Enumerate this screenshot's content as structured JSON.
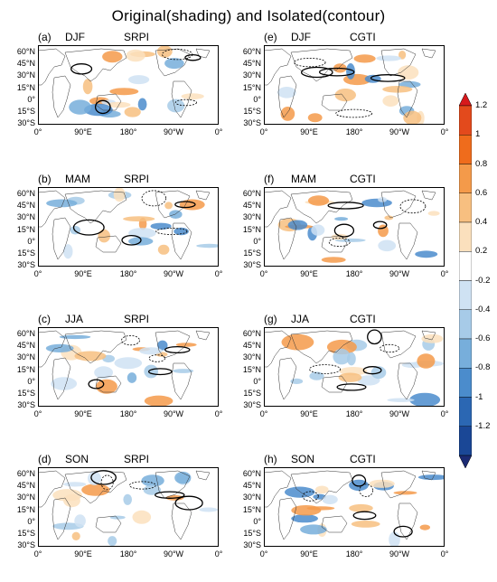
{
  "title": "Original(shading) and Isolated(contour)",
  "panels": [
    {
      "label": "(a)",
      "season": "DJF",
      "index": "SRPI"
    },
    {
      "label": "(b)",
      "season": "MAM",
      "index": "SRPI"
    },
    {
      "label": "(c)",
      "season": "JJA",
      "index": "SRPI"
    },
    {
      "label": "(d)",
      "season": "SON",
      "index": "SRPI"
    },
    {
      "label": "(e)",
      "season": "DJF",
      "index": "CGTI"
    },
    {
      "label": "(f)",
      "season": "MAM",
      "index": "CGTI"
    },
    {
      "label": "(g)",
      "season": "JJA",
      "index": "CGTI"
    },
    {
      "label": "(h)",
      "season": "SON",
      "index": "CGTI"
    }
  ],
  "lat_labels": [
    "60°N",
    "45°N",
    "30°N",
    "15°N",
    "0°",
    "15°S",
    "30°S"
  ],
  "lon_labels": [
    "0°",
    "90°E",
    "180°",
    "90°W",
    "0°"
  ],
  "colorbar": {
    "labels": [
      "1.2",
      "1",
      "0.8",
      "0.6",
      "0.4",
      "0.2",
      "-0.2",
      "-0.4",
      "-0.6",
      "-0.8",
      "-1",
      "-1.2"
    ],
    "colors": [
      "#d7191c",
      "#e34a1c",
      "#ef6c1c",
      "#f49a4a",
      "#f7bf80",
      "#fbe0bd",
      "#ffffff",
      "#cfe2f3",
      "#a7cbe8",
      "#77aedb",
      "#4b8ccc",
      "#2b67b3",
      "#1a4796",
      "#1b2a73"
    ]
  }
}
